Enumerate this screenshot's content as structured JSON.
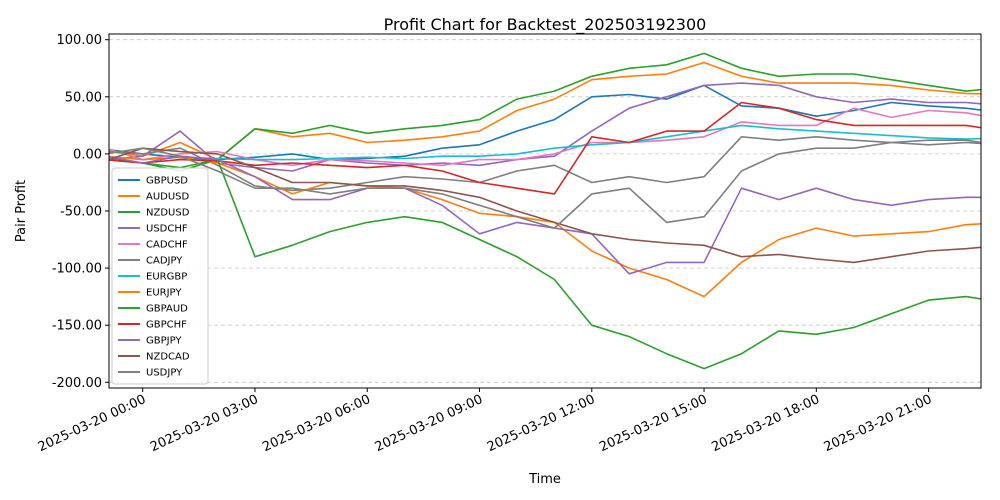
{
  "chart_data": {
    "type": "line",
    "title": "Profit Chart for Backtest_202503192300",
    "xlabel": "Time",
    "ylabel": "Pair Profit",
    "ylim": [
      -205,
      105
    ],
    "xlim": [
      -0.9,
      22.4
    ],
    "grid": "horizontal-dashed",
    "legend_position": "lower-left",
    "yticks": [
      100,
      50,
      0,
      -50,
      -100,
      -150,
      -200
    ],
    "ytick_labels": [
      "100.00",
      "50.00",
      "0.00",
      "-50.00",
      "-100.00",
      "-150.00",
      "-200.00"
    ],
    "xticks": [
      0,
      3,
      6,
      9,
      12,
      15,
      18,
      21
    ],
    "xtick_labels": [
      "2025-03-20 00:00",
      "2025-03-20 03:00",
      "2025-03-20 06:00",
      "2025-03-20 09:00",
      "2025-03-20 12:00",
      "2025-03-20 15:00",
      "2025-03-20 18:00",
      "2025-03-20 21:00"
    ],
    "x_hours": [
      -1,
      0,
      1,
      2,
      3,
      4,
      5,
      6,
      7,
      8,
      9,
      10,
      11,
      12,
      13,
      14,
      15,
      16,
      17,
      18,
      19,
      20,
      21,
      22,
      23
    ],
    "series": [
      {
        "name": "GBPUSD",
        "color": "#1f77b4",
        "values": [
          4,
          0,
          -3,
          -5,
          -3,
          0,
          -5,
          -4,
          -2,
          5,
          8,
          20,
          30,
          50,
          52,
          48,
          60,
          42,
          40,
          33,
          38,
          45,
          42,
          40,
          36
        ]
      },
      {
        "name": "AUDUSD",
        "color": "#ff7f0e",
        "values": [
          3,
          -2,
          10,
          -5,
          22,
          15,
          18,
          10,
          12,
          15,
          20,
          38,
          48,
          65,
          68,
          70,
          80,
          68,
          62,
          62,
          62,
          60,
          56,
          53,
          52
        ]
      },
      {
        "name": "NZDUSD",
        "color": "#2ca02c",
        "values": [
          -4,
          -8,
          -15,
          -5,
          22,
          18,
          25,
          18,
          22,
          25,
          30,
          48,
          55,
          68,
          75,
          78,
          88,
          75,
          68,
          70,
          70,
          65,
          60,
          55,
          58
        ]
      },
      {
        "name": "USDCHF",
        "color": "#9467bd",
        "values": [
          -5,
          -2,
          20,
          -8,
          -12,
          -15,
          -5,
          -8,
          -10,
          -8,
          -10,
          -5,
          -2,
          20,
          40,
          50,
          60,
          62,
          60,
          50,
          45,
          48,
          45,
          45,
          42
        ]
      },
      {
        "name": "CADCHF",
        "color": "#e377c2",
        "values": [
          5,
          -5,
          0,
          2,
          -5,
          -10,
          -5,
          -6,
          -8,
          -10,
          -5,
          -5,
          0,
          10,
          10,
          12,
          15,
          28,
          25,
          25,
          40,
          32,
          38,
          36,
          30
        ]
      },
      {
        "name": "CADJPY",
        "color": "#7f7f7f",
        "values": [
          2,
          0,
          5,
          -10,
          -28,
          -32,
          -30,
          -25,
          -20,
          -22,
          -25,
          -15,
          -10,
          -25,
          -20,
          -25,
          -20,
          15,
          12,
          15,
          12,
          10,
          8,
          10,
          8
        ]
      },
      {
        "name": "EURGBP",
        "color": "#17becf",
        "values": [
          -2,
          -5,
          -3,
          -4,
          -5,
          -5,
          -4,
          -3,
          -4,
          -2,
          -2,
          0,
          5,
          8,
          10,
          15,
          20,
          25,
          22,
          20,
          18,
          16,
          14,
          13,
          14
        ]
      },
      {
        "name": "EURJPY",
        "color": "#ff7f0e",
        "values": [
          -2,
          -5,
          -3,
          -8,
          -20,
          -35,
          -25,
          -28,
          -30,
          -40,
          -52,
          -55,
          -60,
          -85,
          -100,
          -110,
          -125,
          -95,
          -75,
          -65,
          -72,
          -70,
          -68,
          -62,
          -60
        ]
      },
      {
        "name": "GBPAUD",
        "color": "#2ca02c",
        "values": [
          -5,
          -8,
          -12,
          -5,
          -90,
          -80,
          -68,
          -60,
          -55,
          -60,
          -75,
          -90,
          -110,
          -150,
          -160,
          -175,
          -188,
          -175,
          -155,
          -158,
          -152,
          -140,
          -128,
          -125,
          -130
        ]
      },
      {
        "name": "GBPCHF",
        "color": "#d62728",
        "values": [
          -5,
          -8,
          -5,
          -6,
          -10,
          -8,
          -10,
          -12,
          -10,
          -15,
          -25,
          -30,
          -35,
          15,
          10,
          20,
          20,
          45,
          40,
          30,
          25,
          25,
          25,
          25,
          20
        ]
      },
      {
        "name": "GBPJPY",
        "color": "#9467bd",
        "values": [
          -2,
          -8,
          -2,
          -5,
          -20,
          -40,
          -40,
          -30,
          -30,
          -45,
          -70,
          -60,
          -65,
          -70,
          -105,
          -95,
          -95,
          -30,
          -40,
          -30,
          -40,
          -45,
          -40,
          -38,
          -38
        ]
      },
      {
        "name": "NZDCAD",
        "color": "#8c564b",
        "values": [
          -6,
          5,
          2,
          0,
          -12,
          -25,
          -25,
          -28,
          -28,
          -32,
          -38,
          -50,
          -60,
          -70,
          -75,
          -78,
          -80,
          -90,
          -88,
          -92,
          -95,
          -90,
          -85,
          -83,
          -80
        ]
      },
      {
        "name": "USDJPY",
        "color": "#7f7f7f",
        "values": [
          0,
          5,
          -2,
          -15,
          -30,
          -30,
          -35,
          -30,
          -30,
          -35,
          -45,
          -55,
          -65,
          -35,
          -30,
          -60,
          -55,
          -15,
          0,
          5,
          5,
          10,
          12,
          12,
          7
        ]
      }
    ]
  }
}
